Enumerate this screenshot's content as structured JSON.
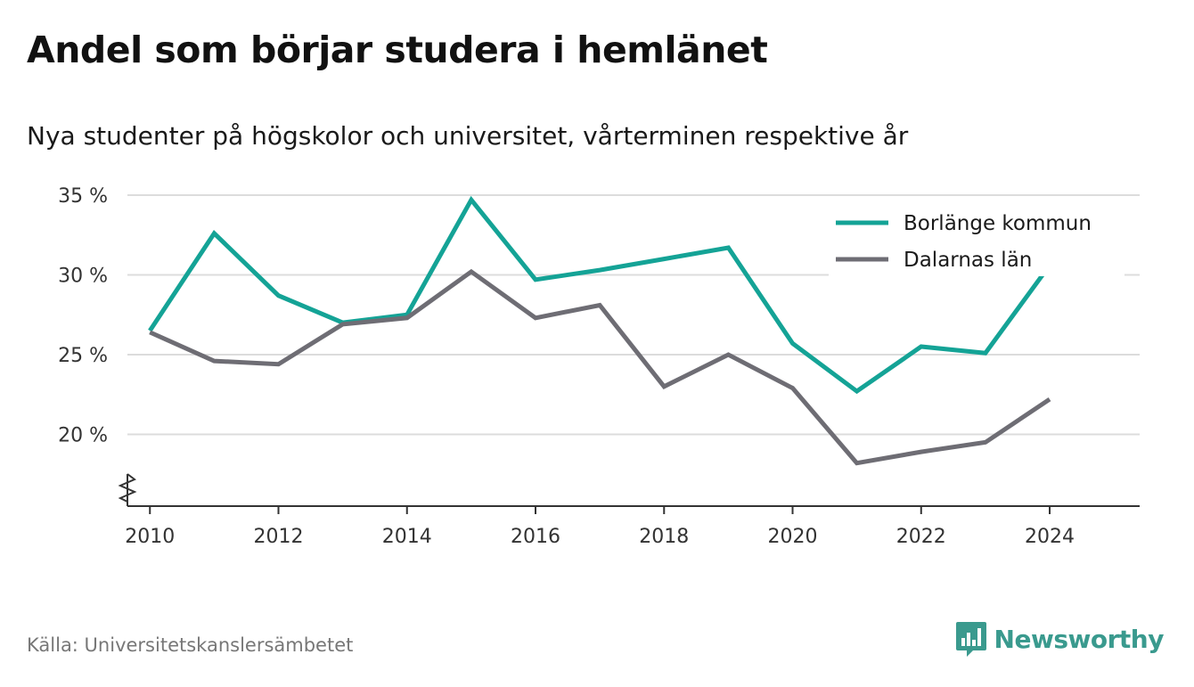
{
  "title": "Andel som börjar studera i hemlänet",
  "subtitle": "Nya studenter på högskolor och universitet, vårterminen respektive år",
  "source": "Källa: Universitetskanslersämbetet",
  "brand": {
    "name": "Newsworthy",
    "icon": "newsworthy-logo-icon",
    "color": "#3a9a8e"
  },
  "chart_data": {
    "type": "line",
    "title": "Andel som börjar studera i hemlänet",
    "subtitle": "Nya studenter på högskolor och universitet, vårterminen respektive år",
    "xlabel": "",
    "ylabel": "",
    "x": [
      2010,
      2011,
      2012,
      2013,
      2014,
      2015,
      2016,
      2017,
      2018,
      2019,
      2020,
      2021,
      2022,
      2023,
      2024
    ],
    "x_ticks": [
      2010,
      2012,
      2014,
      2016,
      2018,
      2020,
      2022,
      2024
    ],
    "x_tick_labels": [
      "2010",
      "2012",
      "2014",
      "2016",
      "2018",
      "2020",
      "2022",
      "2024"
    ],
    "xlim": [
      2009.65,
      2025.4
    ],
    "y_ticks": [
      20,
      25,
      30,
      35
    ],
    "y_tick_labels": [
      "20 %",
      "25 %",
      "30 %",
      "35 %"
    ],
    "ylim": [
      15.5,
      35.5
    ],
    "y_axis_break": true,
    "grid": "horizontal",
    "legend_position": "top-right",
    "series": [
      {
        "name": "Borlänge kommun",
        "color": "#14a396",
        "values": [
          26.5,
          32.6,
          28.7,
          27.0,
          27.5,
          34.7,
          29.7,
          30.3,
          31.0,
          31.7,
          25.7,
          22.7,
          25.5,
          25.1,
          30.6
        ]
      },
      {
        "name": "Dalarnas län",
        "color": "#6e6d74",
        "values": [
          26.4,
          24.6,
          24.4,
          26.9,
          27.3,
          30.2,
          27.3,
          28.1,
          23.0,
          25.0,
          22.9,
          18.2,
          18.9,
          19.5,
          22.2
        ]
      }
    ]
  }
}
